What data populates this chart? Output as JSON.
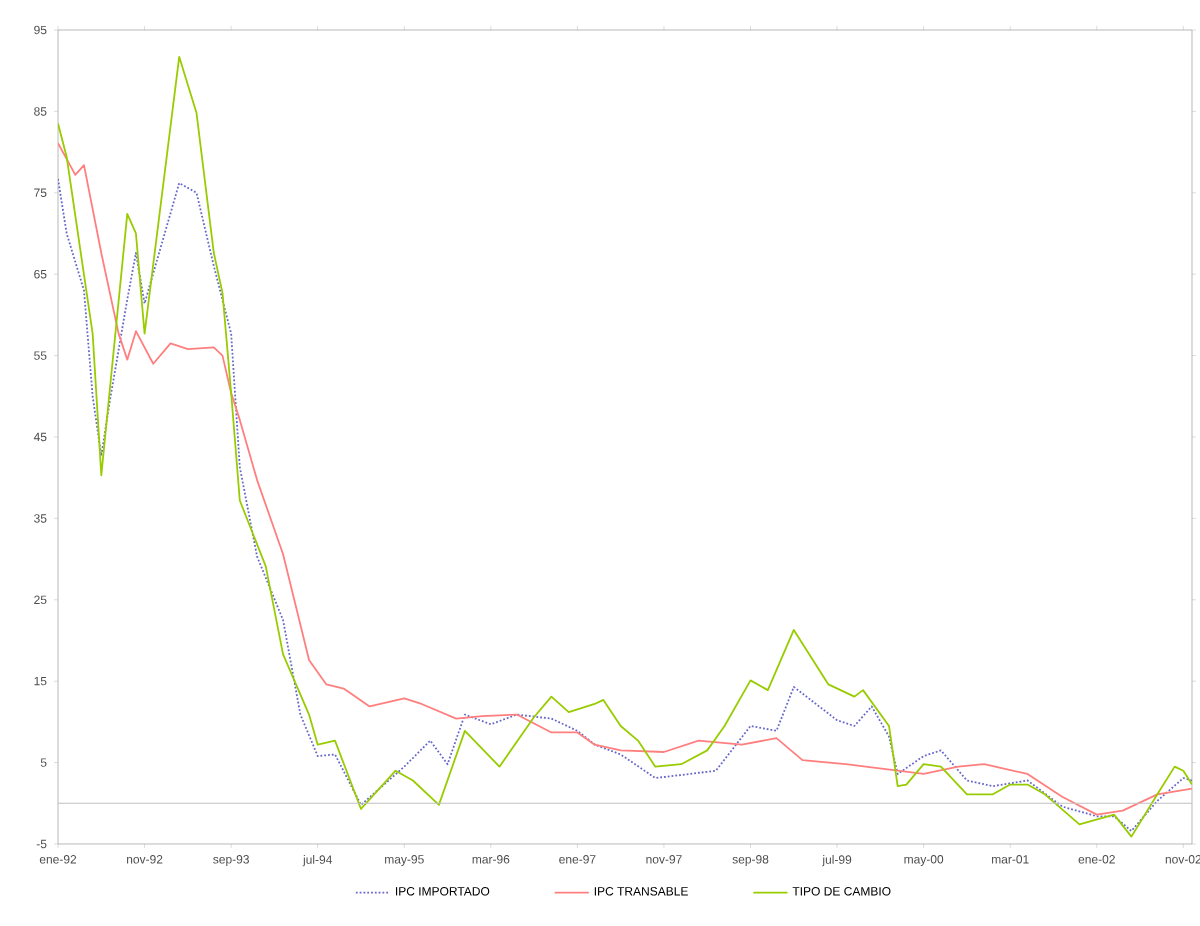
{
  "chart_data": {
    "type": "line",
    "xlim": [
      "1992-01",
      "2002-12"
    ],
    "xticks": [
      {
        "value": "1992-01",
        "label": "ene-92"
      },
      {
        "value": "1992-11",
        "label": "nov-92"
      },
      {
        "value": "1993-09",
        "label": "sep-93"
      },
      {
        "value": "1994-07",
        "label": "jul-94"
      },
      {
        "value": "1995-05",
        "label": "may-95"
      },
      {
        "value": "1996-03",
        "label": "mar-96"
      },
      {
        "value": "1997-01",
        "label": "ene-97"
      },
      {
        "value": "1997-11",
        "label": "nov-97"
      },
      {
        "value": "1998-09",
        "label": "sep-98"
      },
      {
        "value": "1999-07",
        "label": "jul-99"
      },
      {
        "value": "2000-05",
        "label": "may-00"
      },
      {
        "value": "2001-03",
        "label": "mar-01"
      },
      {
        "value": "2002-01",
        "label": "ene-02"
      },
      {
        "value": "2002-11",
        "label": "nov-02"
      }
    ],
    "ylim": [
      -5,
      95
    ],
    "yticks": [
      -5,
      5,
      15,
      25,
      35,
      45,
      55,
      65,
      75,
      85,
      95
    ],
    "grid": false,
    "legend": "bottom",
    "line_style": "solid",
    "ref_lines": [
      {
        "axis": "y",
        "value": 0,
        "color": "#c0c0c0"
      }
    ],
    "series": [
      {
        "name": "IPC IMPORTADO",
        "color": "#6666cc",
        "line_style": "dotted",
        "x": [
          "1992-01",
          "1992-02",
          "1992-04",
          "1992-05",
          "1992-06",
          "1992-07",
          "1992-09",
          "1992-10",
          "1992-11",
          "1993-03",
          "1993-05",
          "1993-07",
          "1993-09",
          "1993-10",
          "1993-12",
          "1994-03",
          "1994-05",
          "1994-07",
          "1994-09",
          "1994-12",
          "1995-05",
          "1995-08",
          "1995-10",
          "1995-12",
          "1996-03",
          "1996-06",
          "1996-10",
          "1997-01",
          "1997-03",
          "1997-06",
          "1997-10",
          "1998-02",
          "1998-05",
          "1998-09",
          "1998-12",
          "1999-02",
          "1999-07",
          "1999-09",
          "1999-11",
          "2000-01",
          "2000-02",
          "2000-05",
          "2000-07",
          "2000-10",
          "2001-01",
          "2001-05",
          "2001-09",
          "2002-01",
          "2002-03",
          "2002-05",
          "2002-08",
          "2002-11",
          "2002-12"
        ],
        "values": [
          76.7,
          70,
          63,
          50,
          42.7,
          49.5,
          61.9,
          67.6,
          61.4,
          76.2,
          75,
          66,
          57.7,
          41.3,
          30.3,
          22.5,
          10.9,
          5.8,
          6,
          -0.2,
          4.5,
          7.7,
          4.8,
          10.9,
          9.7,
          10.9,
          10.4,
          8.9,
          7.2,
          6,
          3.1,
          3.6,
          4,
          9.5,
          8.9,
          14.3,
          10.2,
          9.5,
          11.9,
          8.2,
          3.6,
          5.8,
          6.5,
          2.8,
          2.1,
          2.8,
          -0.4,
          -1.6,
          -1.6,
          -3.4,
          0.3,
          3.1,
          2.8
        ]
      },
      {
        "name": "IPC TRANSABLE",
        "color": "#ff7f7f",
        "x": [
          "1992-01",
          "1992-03",
          "1992-04",
          "1992-06",
          "1992-08",
          "1992-09",
          "1992-10",
          "1992-12",
          "1993-02",
          "1993-04",
          "1993-07",
          "1993-08",
          "1993-09",
          "1993-10",
          "1993-12",
          "1994-03",
          "1994-06",
          "1994-08",
          "1994-10",
          "1995-01",
          "1995-05",
          "1995-07",
          "1995-11",
          "1996-02",
          "1996-06",
          "1996-10",
          "1997-01",
          "1997-03",
          "1997-06",
          "1997-11",
          "1998-03",
          "1998-08",
          "1998-12",
          "1999-03",
          "1999-08",
          "2000-02",
          "2000-05",
          "2000-09",
          "2000-12",
          "2001-05",
          "2001-09",
          "2002-01",
          "2002-04",
          "2002-08",
          "2002-12"
        ],
        "values": [
          81.1,
          77.2,
          78.4,
          67.6,
          57.7,
          54.5,
          58,
          54,
          56.5,
          55.8,
          56,
          55,
          50.4,
          47.1,
          39.7,
          30.6,
          17.6,
          14.6,
          14.1,
          11.9,
          12.9,
          12.2,
          10.4,
          10.7,
          10.9,
          8.7,
          8.7,
          7.2,
          6.5,
          6.3,
          7.7,
          7.2,
          8,
          5.3,
          4.8,
          4,
          3.6,
          4.5,
          4.8,
          3.6,
          0.8,
          -1.4,
          -0.9,
          1.1,
          1.8
        ]
      },
      {
        "name": "TIPO DE CAMBIO",
        "color": "#99cc00",
        "x": [
          "1992-01",
          "1992-02",
          "1992-05",
          "1992-06",
          "1992-09",
          "1992-10",
          "1992-11",
          "1993-03",
          "1993-05",
          "1993-07",
          "1993-08",
          "1993-09",
          "1993-10",
          "1994-01",
          "1994-03",
          "1994-06",
          "1994-07",
          "1994-09",
          "1994-12",
          "1995-04",
          "1995-06",
          "1995-09",
          "1995-12",
          "1996-04",
          "1996-08",
          "1996-10",
          "1996-12",
          "1997-03",
          "1997-04",
          "1997-06",
          "1997-08",
          "1997-10",
          "1998-01",
          "1998-04",
          "1998-06",
          "1998-09",
          "1998-11",
          "1999-02",
          "1999-06",
          "1999-09",
          "1999-10",
          "2000-01",
          "2000-02",
          "2000-03",
          "2000-05",
          "2000-07",
          "2000-10",
          "2001-01",
          "2001-03",
          "2001-05",
          "2001-07",
          "2001-11",
          "2002-03",
          "2002-05",
          "2002-08",
          "2002-10",
          "2002-11",
          "2002-12"
        ],
        "values": [
          83.5,
          79.4,
          57.7,
          40.3,
          72.4,
          70,
          57.7,
          91.7,
          84.8,
          67.6,
          62.7,
          50.4,
          37.2,
          29.1,
          18.3,
          10.9,
          7.2,
          7.7,
          -0.7,
          4,
          2.8,
          -0.2,
          8.9,
          4.5,
          10.6,
          13.1,
          11.2,
          12.2,
          12.7,
          9.5,
          7.7,
          4.5,
          4.8,
          6.5,
          9.5,
          15.1,
          13.9,
          21.3,
          14.6,
          13.1,
          13.9,
          9.5,
          2.1,
          2.3,
          4.8,
          4.5,
          1.1,
          1.1,
          2.3,
          2.3,
          1.1,
          -2.6,
          -1.4,
          -4.1,
          1.1,
          4.5,
          4,
          2.3
        ]
      }
    ]
  }
}
